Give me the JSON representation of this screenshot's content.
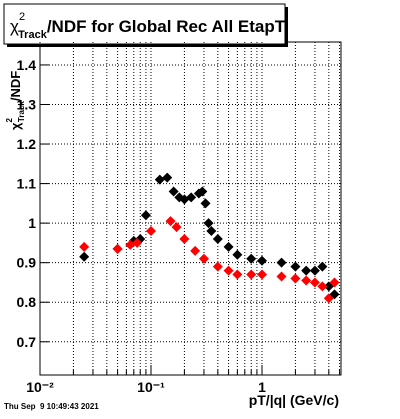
{
  "chart_data": {
    "type": "scatter",
    "title_symbol": "χ",
    "title_sup": "2",
    "title_sub": "Track",
    "title": "/NDF for Global Rec All EtapT",
    "y_label_symbol": "χ",
    "y_label_sup": "2",
    "y_label_sub": "Track",
    "y_label": "/NDF",
    "x_label": "pT/|q| (GeV/c)",
    "timestamp": "Thu Sep  9 10:49:43 2021",
    "log_x": true,
    "grid": true,
    "xlim": [
      0.01,
      5.15
    ],
    "ylim": [
      0.616,
      1.458
    ],
    "xticks": [
      {
        "value": 0.01,
        "label": "10⁻²"
      },
      {
        "value": 0.1,
        "label": "10⁻¹"
      },
      1
    ],
    "xminorticks": [
      0.02,
      0.03,
      0.04,
      0.05,
      0.06,
      0.07,
      0.08,
      0.09,
      0.2,
      0.3,
      0.4,
      0.5,
      0.6,
      0.7,
      0.8,
      0.9,
      2,
      3,
      4,
      5
    ],
    "yticks": [
      0.7,
      0.8,
      0.9,
      1,
      1.1,
      1.2,
      1.3,
      1.4
    ],
    "series": [
      {
        "name": "black",
        "color": "#000000",
        "x": [
          0.025,
          0.05,
          0.07,
          0.08,
          0.09,
          0.12,
          0.14,
          0.16,
          0.18,
          0.2,
          0.23,
          0.27,
          0.29,
          0.31,
          0.33,
          0.35,
          0.4,
          0.5,
          0.6,
          0.8,
          1.0,
          1.5,
          2.0,
          2.5,
          3.0,
          3.5,
          4.0,
          4.5
        ],
        "values": [
          0.915,
          0.935,
          0.955,
          0.96,
          1.02,
          1.11,
          1.115,
          1.08,
          1.065,
          1.06,
          1.065,
          1.075,
          1.08,
          1.05,
          1.0,
          0.98,
          0.96,
          0.94,
          0.92,
          0.91,
          0.905,
          0.9,
          0.89,
          0.88,
          0.88,
          0.89,
          0.84,
          0.82
        ]
      },
      {
        "name": "red",
        "color": "#ff0000",
        "x": [
          0.025,
          0.05,
          0.065,
          0.075,
          0.1,
          0.15,
          0.17,
          0.2,
          0.25,
          0.3,
          0.4,
          0.5,
          0.6,
          0.8,
          1.0,
          1.5,
          2.0,
          2.5,
          3.0,
          3.5,
          4.0,
          4.5
        ],
        "values": [
          0.94,
          0.935,
          0.945,
          0.95,
          0.98,
          1.005,
          0.99,
          0.96,
          0.93,
          0.91,
          0.89,
          0.88,
          0.87,
          0.87,
          0.87,
          0.865,
          0.86,
          0.855,
          0.85,
          0.84,
          0.81,
          0.85
        ]
      }
    ]
  }
}
